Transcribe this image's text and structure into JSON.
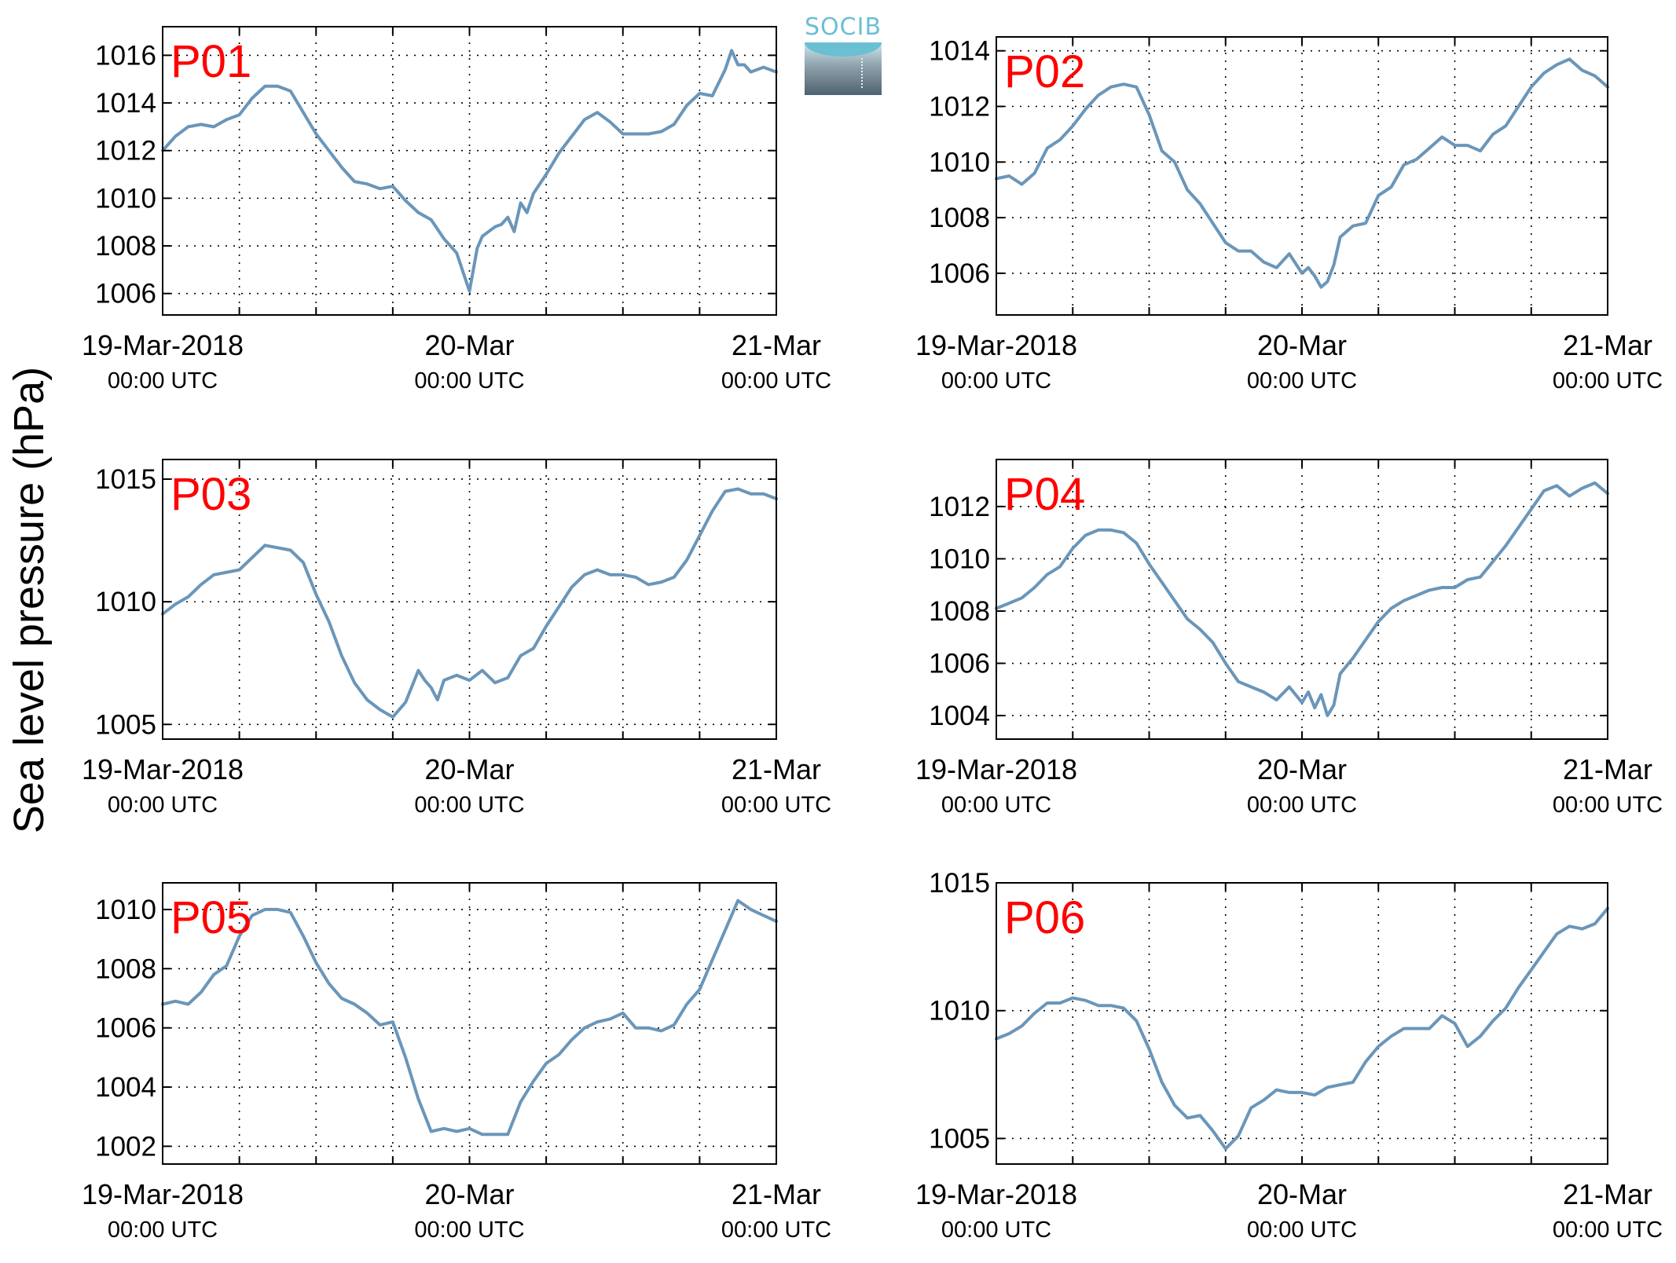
{
  "figure": {
    "ylabel": "Sea level pressure (hPa)",
    "logo_text": "SOCIB",
    "line_color": "#6a96b9",
    "label_color": "#ff0000"
  },
  "chart_data": [
    {
      "type": "line",
      "label": "P01",
      "x_unit": "hours since 19-Mar-2018 00:00 UTC",
      "xlim": [
        0,
        48
      ],
      "xticks": [
        {
          "value": 0,
          "line1": "19-Mar-2018",
          "line2": "00:00 UTC"
        },
        {
          "value": 24,
          "line1": "20-Mar",
          "line2": "00:00 UTC"
        },
        {
          "value": 48,
          "line1": "21-Mar",
          "line2": "00:00 UTC"
        }
      ],
      "ylim": [
        1005.1,
        1017.2
      ],
      "yticks": [
        1006,
        1008,
        1010,
        1012,
        1014,
        1016
      ],
      "grid": true,
      "x": [
        0,
        1,
        2,
        3,
        4,
        5,
        6,
        7,
        8,
        9,
        10,
        11,
        12,
        13,
        14,
        15,
        16,
        17,
        18,
        19,
        20,
        21,
        22,
        23,
        24,
        24.6,
        25,
        25.5,
        26,
        26.5,
        27,
        27.5,
        28,
        28.5,
        29,
        30,
        31,
        32,
        33,
        34,
        35,
        36,
        37,
        38,
        39,
        40,
        41,
        42,
        43,
        44,
        44.5,
        45,
        45.5,
        46,
        47,
        48
      ],
      "y": [
        1012.0,
        1012.6,
        1013.0,
        1013.1,
        1013.0,
        1013.3,
        1013.5,
        1014.2,
        1014.7,
        1014.7,
        1014.5,
        1013.6,
        1012.7,
        1012.0,
        1011.3,
        1010.7,
        1010.6,
        1010.4,
        1010.5,
        1009.9,
        1009.4,
        1009.1,
        1008.3,
        1007.7,
        1006.1,
        1007.9,
        1008.4,
        1008.6,
        1008.8,
        1008.9,
        1009.2,
        1008.6,
        1009.8,
        1009.4,
        1010.2,
        1011.0,
        1011.9,
        1012.6,
        1013.3,
        1013.6,
        1013.2,
        1012.7,
        1012.7,
        1012.7,
        1012.8,
        1013.1,
        1013.9,
        1014.4,
        1014.3,
        1015.4,
        1016.2,
        1015.6,
        1015.6,
        1015.3,
        1015.5,
        1015.3
      ]
    },
    {
      "type": "line",
      "label": "P02",
      "x_unit": "hours since 19-Mar-2018 00:00 UTC",
      "xlim": [
        0,
        48
      ],
      "xticks": [
        {
          "value": 0,
          "line1": "19-Mar-2018",
          "line2": "00:00 UTC"
        },
        {
          "value": 24,
          "line1": "20-Mar",
          "line2": "00:00 UTC"
        },
        {
          "value": 48,
          "line1": "21-Mar",
          "line2": "00:00 UTC"
        }
      ],
      "ylim": [
        1004.5,
        1014.5
      ],
      "yticks": [
        1006,
        1008,
        1010,
        1012,
        1014
      ],
      "grid": true,
      "x": [
        0,
        1,
        2,
        3,
        4,
        5,
        6,
        7,
        8,
        9,
        10,
        11,
        12,
        13,
        14,
        15,
        16,
        17,
        18,
        19,
        20,
        21,
        22,
        23,
        24,
        24.5,
        25,
        25.5,
        26,
        26.5,
        27,
        28,
        29,
        30,
        31,
        32,
        33,
        34,
        35,
        36,
        37,
        38,
        39,
        40,
        41,
        42,
        43,
        44,
        45,
        46,
        47,
        48
      ],
      "y": [
        1009.4,
        1009.5,
        1009.2,
        1009.6,
        1010.5,
        1010.8,
        1011.3,
        1011.9,
        1012.4,
        1012.7,
        1012.8,
        1012.7,
        1011.7,
        1010.4,
        1010.0,
        1009.0,
        1008.5,
        1007.8,
        1007.1,
        1006.8,
        1006.8,
        1006.4,
        1006.2,
        1006.7,
        1006.0,
        1006.2,
        1005.9,
        1005.5,
        1005.7,
        1006.3,
        1007.3,
        1007.7,
        1007.8,
        1008.8,
        1009.1,
        1009.9,
        1010.1,
        1010.5,
        1010.9,
        1010.6,
        1010.6,
        1010.4,
        1011.0,
        1011.3,
        1012.0,
        1012.7,
        1013.2,
        1013.5,
        1013.7,
        1013.3,
        1013.1,
        1012.7
      ]
    },
    {
      "type": "line",
      "label": "P03",
      "x_unit": "hours since 19-Mar-2018 00:00 UTC",
      "xlim": [
        0,
        48
      ],
      "xticks": [
        {
          "value": 0,
          "line1": "19-Mar-2018",
          "line2": "00:00 UTC"
        },
        {
          "value": 24,
          "line1": "20-Mar",
          "line2": "00:00 UTC"
        },
        {
          "value": 48,
          "line1": "21-Mar",
          "line2": "00:00 UTC"
        }
      ],
      "ylim": [
        1004.4,
        1015.8
      ],
      "yticks": [
        1005,
        1010,
        1015
      ],
      "grid": true,
      "x": [
        0,
        1,
        2,
        3,
        4,
        5,
        6,
        7,
        8,
        9,
        10,
        11,
        12,
        13,
        14,
        15,
        16,
        17,
        18,
        19,
        20,
        20.5,
        21,
        21.5,
        22,
        22.5,
        23,
        24,
        25,
        26,
        27,
        28,
        29,
        30,
        31,
        32,
        33,
        34,
        35,
        36,
        37,
        38,
        39,
        40,
        41,
        42,
        43,
        44,
        45,
        46,
        47,
        48
      ],
      "y": [
        1009.5,
        1009.9,
        1010.2,
        1010.7,
        1011.1,
        1011.2,
        1011.3,
        1011.8,
        1012.3,
        1012.2,
        1012.1,
        1011.6,
        1010.3,
        1009.2,
        1007.8,
        1006.7,
        1006.0,
        1005.6,
        1005.3,
        1005.9,
        1007.2,
        1006.8,
        1006.5,
        1006.0,
        1006.8,
        1006.9,
        1007.0,
        1006.8,
        1007.2,
        1006.7,
        1006.9,
        1007.8,
        1008.1,
        1009.0,
        1009.8,
        1010.6,
        1011.1,
        1011.3,
        1011.1,
        1011.1,
        1011.0,
        1010.7,
        1010.8,
        1011.0,
        1011.7,
        1012.7,
        1013.7,
        1014.5,
        1014.6,
        1014.4,
        1014.4,
        1014.2
      ]
    },
    {
      "type": "line",
      "label": "P04",
      "x_unit": "hours since 19-Mar-2018 00:00 UTC",
      "xlim": [
        0,
        48
      ],
      "xticks": [
        {
          "value": 0,
          "line1": "19-Mar-2018",
          "line2": "00:00 UTC"
        },
        {
          "value": 24,
          "line1": "20-Mar",
          "line2": "00:00 UTC"
        },
        {
          "value": 48,
          "line1": "21-Mar",
          "line2": "00:00 UTC"
        }
      ],
      "ylim": [
        1003.1,
        1013.8
      ],
      "yticks": [
        1004,
        1006,
        1008,
        1010,
        1012
      ],
      "grid": true,
      "x": [
        0,
        1,
        2,
        3,
        4,
        5,
        6,
        7,
        8,
        9,
        10,
        11,
        12,
        13,
        14,
        15,
        16,
        17,
        18,
        19,
        20,
        21,
        22,
        23,
        24,
        24.5,
        25,
        25.5,
        26,
        26.5,
        27,
        28,
        29,
        30,
        31,
        32,
        33,
        34,
        35,
        36,
        37,
        38,
        39,
        40,
        41,
        42,
        43,
        44,
        45,
        46,
        47,
        48
      ],
      "y": [
        1008.1,
        1008.3,
        1008.5,
        1008.9,
        1009.4,
        1009.7,
        1010.4,
        1010.9,
        1011.1,
        1011.1,
        1011.0,
        1010.6,
        1009.8,
        1009.1,
        1008.4,
        1007.7,
        1007.3,
        1006.8,
        1006.0,
        1005.3,
        1005.1,
        1004.9,
        1004.6,
        1005.1,
        1004.5,
        1004.9,
        1004.3,
        1004.8,
        1004.0,
        1004.4,
        1005.6,
        1006.2,
        1006.9,
        1007.6,
        1008.1,
        1008.4,
        1008.6,
        1008.8,
        1008.9,
        1008.9,
        1009.2,
        1009.3,
        1009.9,
        1010.5,
        1011.2,
        1011.9,
        1012.6,
        1012.8,
        1012.4,
        1012.7,
        1012.9,
        1012.5
      ]
    },
    {
      "type": "line",
      "label": "P05",
      "x_unit": "hours since 19-Mar-2018 00:00 UTC",
      "xlim": [
        0,
        48
      ],
      "xticks": [
        {
          "value": 0,
          "line1": "19-Mar-2018",
          "line2": "00:00 UTC"
        },
        {
          "value": 24,
          "line1": "20-Mar",
          "line2": "00:00 UTC"
        },
        {
          "value": 48,
          "line1": "21-Mar",
          "line2": "00:00 UTC"
        }
      ],
      "ylim": [
        1001.4,
        1010.9
      ],
      "yticks": [
        1002,
        1004,
        1006,
        1008,
        1010
      ],
      "grid": true,
      "x": [
        0,
        1,
        2,
        3,
        4,
        5,
        6,
        7,
        8,
        9,
        10,
        11,
        12,
        13,
        14,
        15,
        16,
        17,
        18,
        19,
        20,
        21,
        22,
        23,
        24,
        25,
        26,
        27,
        28,
        29,
        30,
        31,
        32,
        33,
        34,
        35,
        36,
        37,
        38,
        39,
        40,
        41,
        42,
        43,
        44,
        45,
        46,
        47,
        48
      ],
      "y": [
        1006.8,
        1006.9,
        1006.8,
        1007.2,
        1007.8,
        1008.1,
        1009.1,
        1009.8,
        1010.0,
        1010.0,
        1009.9,
        1009.1,
        1008.2,
        1007.5,
        1007.0,
        1006.8,
        1006.5,
        1006.1,
        1006.2,
        1005.0,
        1003.6,
        1002.5,
        1002.6,
        1002.5,
        1002.6,
        1002.4,
        1002.4,
        1002.4,
        1003.5,
        1004.2,
        1004.8,
        1005.1,
        1005.6,
        1006.0,
        1006.2,
        1006.3,
        1006.5,
        1006.0,
        1006.0,
        1005.9,
        1006.1,
        1006.8,
        1007.3,
        1008.3,
        1009.3,
        1010.3,
        1010.0,
        1009.8,
        1009.6
      ]
    },
    {
      "type": "line",
      "label": "P06",
      "x_unit": "hours since 19-Mar-2018 00:00 UTC",
      "xlim": [
        0,
        48
      ],
      "xticks": [
        {
          "value": 0,
          "line1": "19-Mar-2018",
          "line2": "00:00 UTC"
        },
        {
          "value": 24,
          "line1": "20-Mar",
          "line2": "00:00 UTC"
        },
        {
          "value": 48,
          "line1": "21-Mar",
          "line2": "00:00 UTC"
        }
      ],
      "ylim": [
        1004.0,
        1015.0
      ],
      "yticks": [
        1005,
        1010,
        1015
      ],
      "grid": true,
      "x": [
        0,
        1,
        2,
        3,
        4,
        5,
        6,
        7,
        8,
        9,
        10,
        11,
        12,
        13,
        14,
        15,
        16,
        17,
        18,
        19,
        20,
        21,
        22,
        23,
        24,
        25,
        26,
        27,
        28,
        29,
        30,
        31,
        32,
        33,
        34,
        35,
        36,
        37,
        38,
        39,
        40,
        41,
        42,
        43,
        44,
        45,
        46,
        47,
        48
      ],
      "y": [
        1008.9,
        1009.1,
        1009.4,
        1009.9,
        1010.3,
        1010.3,
        1010.5,
        1010.4,
        1010.2,
        1010.2,
        1010.1,
        1009.6,
        1008.5,
        1007.2,
        1006.3,
        1005.8,
        1005.9,
        1005.3,
        1004.6,
        1005.1,
        1006.2,
        1006.5,
        1006.9,
        1006.8,
        1006.8,
        1006.7,
        1007.0,
        1007.1,
        1007.2,
        1008.0,
        1008.6,
        1009.0,
        1009.3,
        1009.3,
        1009.3,
        1009.8,
        1009.5,
        1008.6,
        1009.0,
        1009.6,
        1010.1,
        1010.9,
        1011.6,
        1012.3,
        1013.0,
        1013.3,
        1013.2,
        1013.4,
        1014.0
      ]
    }
  ]
}
